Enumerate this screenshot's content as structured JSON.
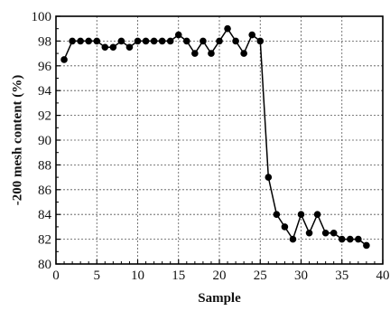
{
  "chart_data": {
    "type": "line",
    "title": "",
    "xlabel": "Sample",
    "ylabel": "-200 mesh content (%)",
    "xlim": [
      0,
      40
    ],
    "ylim": [
      80,
      100
    ],
    "xticks": [
      0,
      5,
      10,
      15,
      20,
      25,
      30,
      35,
      40
    ],
    "yticks": [
      80,
      82,
      84,
      86,
      88,
      90,
      92,
      94,
      96,
      98,
      100
    ],
    "grid": true,
    "marker": "filled-circle",
    "line_color": "#000000",
    "series": [
      {
        "x": [
          1,
          2,
          3,
          4,
          5,
          6,
          7,
          8,
          9,
          10,
          11,
          12,
          13,
          14,
          15,
          16,
          17,
          18,
          19,
          20,
          21,
          22,
          23,
          24,
          25,
          26,
          27,
          28,
          29,
          30,
          31,
          32,
          33,
          34,
          35,
          36,
          37,
          38
        ],
        "y": [
          96.5,
          98,
          98,
          98,
          98,
          97.5,
          97.5,
          98,
          97.5,
          98,
          98,
          98,
          98,
          98,
          98.5,
          98,
          97,
          98,
          97,
          98,
          99,
          98,
          97,
          98.5,
          98,
          87,
          84,
          83,
          82,
          84,
          82.5,
          84,
          82.5,
          82.5,
          82,
          82,
          82,
          81.5
        ]
      }
    ]
  }
}
